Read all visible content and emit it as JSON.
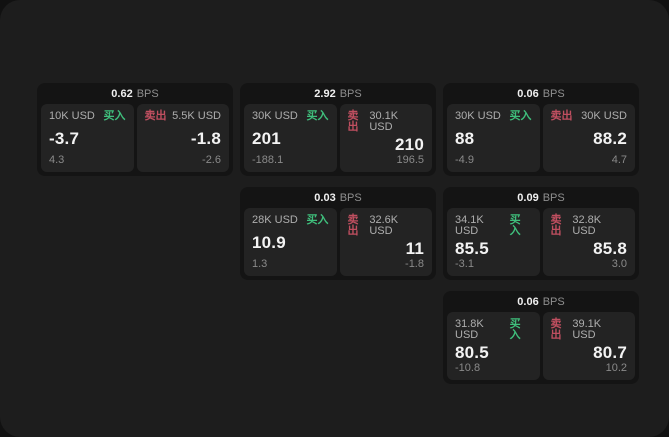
{
  "labels": {
    "bps_unit": "BPS",
    "buy": "买入",
    "sell": "卖出"
  },
  "colors": {
    "buy_green": "#3fbf7c",
    "sell_red": "#c04f60",
    "surface": "#1d1d1d",
    "card_bg": "#141414",
    "panel_bg": "#232323"
  },
  "cards": [
    {
      "bps": "0.62",
      "buy": {
        "notional": "10K USD",
        "price": "-3.7",
        "delta": "4.3"
      },
      "sell": {
        "notional": "5.5K USD",
        "price": "-1.8",
        "delta": "-2.6"
      }
    },
    {
      "bps": "2.92",
      "buy": {
        "notional": "30K USD",
        "price": "201",
        "delta": "-188.1"
      },
      "sell": {
        "notional": "30.1K USD",
        "price": "210",
        "delta": "196.5"
      }
    },
    {
      "bps": "0.06",
      "buy": {
        "notional": "30K USD",
        "price": "88",
        "delta": "-4.9"
      },
      "sell": {
        "notional": "30K USD",
        "price": "88.2",
        "delta": "4.7"
      }
    },
    {
      "bps": "0.03",
      "buy": {
        "notional": "28K USD",
        "price": "10.9",
        "delta": "1.3"
      },
      "sell": {
        "notional": "32.6K USD",
        "price": "11",
        "delta": "-1.8"
      }
    },
    {
      "bps": "0.09",
      "buy": {
        "notional": "34.1K USD",
        "price": "85.5",
        "delta": "-3.1"
      },
      "sell": {
        "notional": "32.8K USD",
        "price": "85.8",
        "delta": "3.0"
      }
    },
    {
      "bps": "0.06",
      "buy": {
        "notional": "31.8K USD",
        "price": "80.5",
        "delta": "-10.8"
      },
      "sell": {
        "notional": "39.1K USD",
        "price": "80.7",
        "delta": "10.2"
      }
    }
  ]
}
